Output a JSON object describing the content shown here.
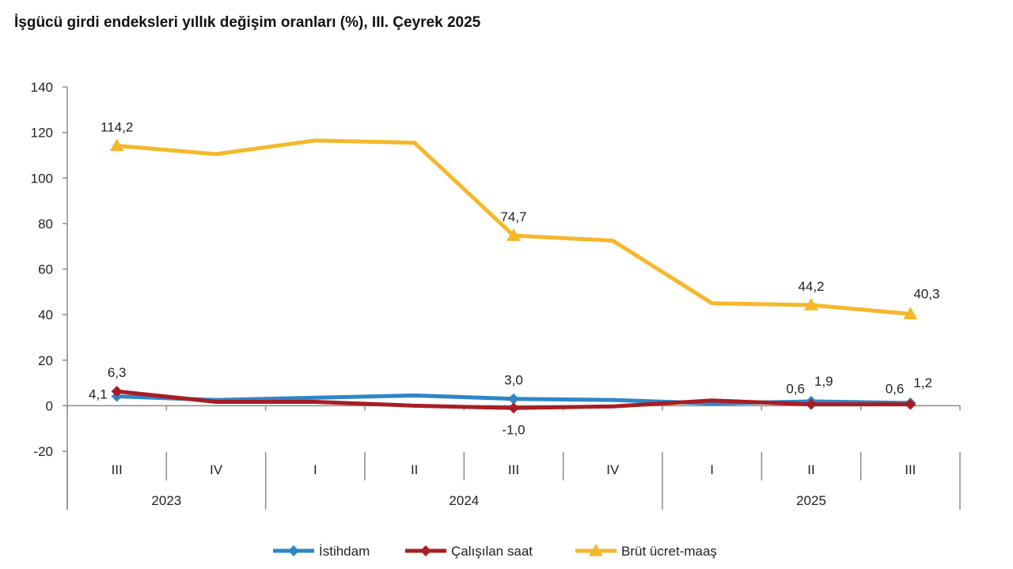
{
  "chart_data": {
    "type": "line",
    "title": "İşgücü girdi endeksleri yıllık değişim oranları (%), III. Çeyrek 2025",
    "xlabel": "",
    "ylabel": "",
    "ylim": [
      -20,
      140
    ],
    "yticks": [
      140,
      120,
      100,
      80,
      60,
      40,
      20,
      0,
      -20
    ],
    "categories": [
      "III",
      "IV",
      "I",
      "II",
      "III",
      "IV",
      "I",
      "II",
      "III"
    ],
    "years": [
      {
        "label": "2023",
        "span": 2
      },
      {
        "label": "2024",
        "span": 4
      },
      {
        "label": "2025",
        "span": 3
      }
    ],
    "grid": false,
    "legend_position": "bottom",
    "series": [
      {
        "name": "İstihdam",
        "color": "#2E86C8",
        "marker": "diamond",
        "values": [
          4.1,
          2.5,
          3.5,
          4.5,
          3.0,
          2.5,
          1.0,
          1.9,
          1.2
        ],
        "labels": [
          {
            "index": 0,
            "text": "4,1",
            "pos": "left"
          },
          {
            "index": 4,
            "text": "3,0",
            "pos": "above"
          },
          {
            "index": 7,
            "text": "1,9",
            "pos": "above-right"
          },
          {
            "index": 8,
            "text": "1,2",
            "pos": "above-right"
          }
        ]
      },
      {
        "name": "Çalışılan saat",
        "color": "#A81D24",
        "marker": "diamond",
        "values": [
          6.3,
          1.7,
          1.7,
          0.0,
          -1.0,
          -0.3,
          2.3,
          0.6,
          0.6
        ],
        "labels": [
          {
            "index": 0,
            "text": "6,3",
            "pos": "above"
          },
          {
            "index": 4,
            "text": "-1,0",
            "pos": "below"
          },
          {
            "index": 7,
            "text": "0,6",
            "pos": "above-left"
          },
          {
            "index": 8,
            "text": "0,6",
            "pos": "above-left"
          }
        ]
      },
      {
        "name": "Brüt ücret-maaş",
        "color": "#F5B82A",
        "marker": "triangle",
        "values": [
          114.2,
          110.5,
          116.5,
          115.5,
          74.7,
          72.5,
          45.0,
          44.2,
          40.3
        ],
        "labels": [
          {
            "index": 0,
            "text": "114,2",
            "pos": "above"
          },
          {
            "index": 4,
            "text": "74,7",
            "pos": "above"
          },
          {
            "index": 7,
            "text": "44,2",
            "pos": "above"
          },
          {
            "index": 8,
            "text": "40,3",
            "pos": "above-right"
          }
        ]
      }
    ]
  }
}
